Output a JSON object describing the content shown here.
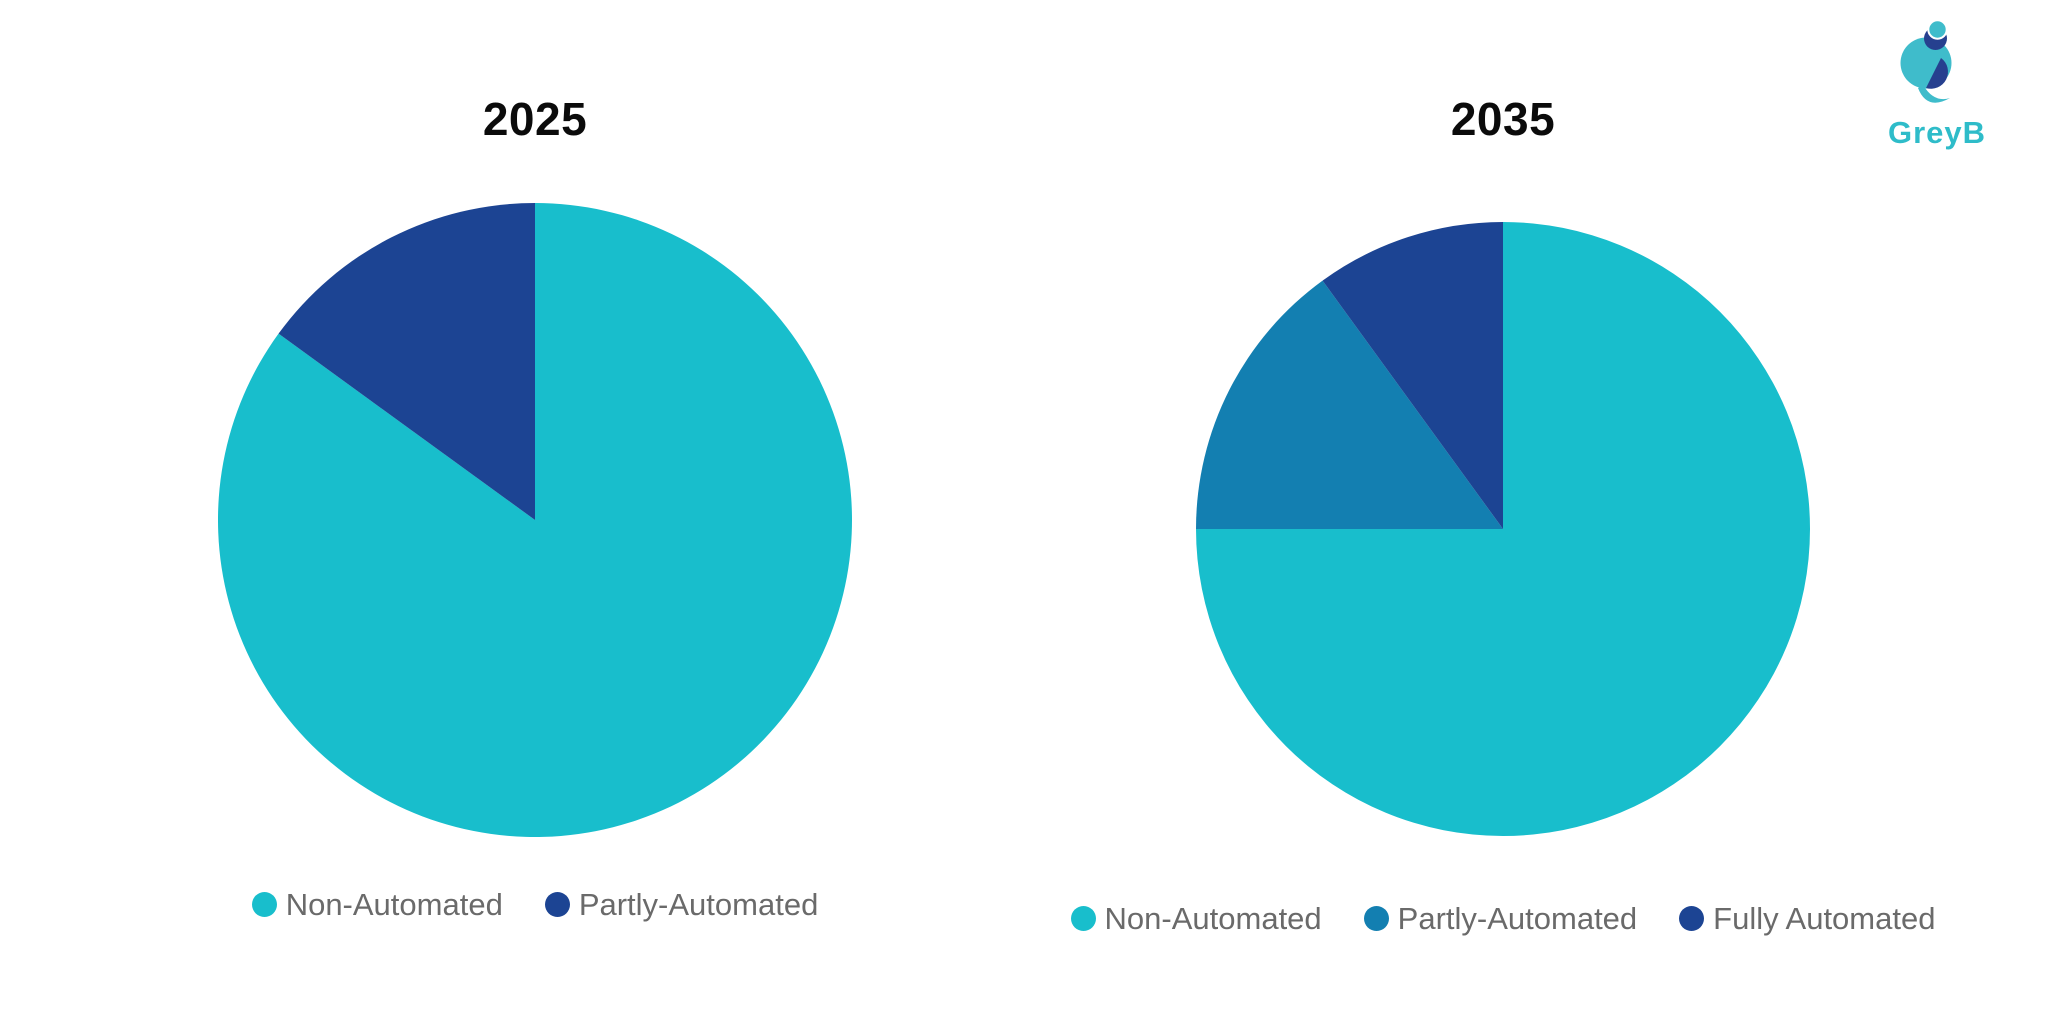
{
  "brand": {
    "name": "GreyB"
  },
  "colors": {
    "teal": "#18BECC",
    "medium_blue": "#137FB1",
    "dark_blue": "#1C4493",
    "title_text": "#0B0B0B",
    "legend_text": "#6A6A6A",
    "background": "#FFFFFF",
    "logo_teal": "#3FBCCB",
    "logo_navy": "#26408F",
    "logo_text_teal": "#2EBCC9"
  },
  "chart_data": [
    {
      "type": "pie",
      "title": "2025",
      "labels": [
        "Non-Automated",
        "Partly-Automated"
      ],
      "values": [
        85,
        15
      ],
      "values_unit": "percent (estimated from slice angles)",
      "colors": [
        "#18BECC",
        "#1C4493"
      ],
      "start_angle_deg": 0,
      "direction": "clockwise",
      "legend_position": "bottom",
      "data_labels": false
    },
    {
      "type": "pie",
      "title": "2035",
      "labels": [
        "Non-Automated",
        "Partly-Automated",
        "Fully Automated"
      ],
      "values": [
        75,
        15,
        10
      ],
      "values_unit": "percent (estimated from slice angles)",
      "colors": [
        "#18BECC",
        "#137FB1",
        "#1C4493"
      ],
      "start_angle_deg": 0,
      "direction": "clockwise",
      "legend_position": "bottom",
      "data_labels": false
    }
  ]
}
